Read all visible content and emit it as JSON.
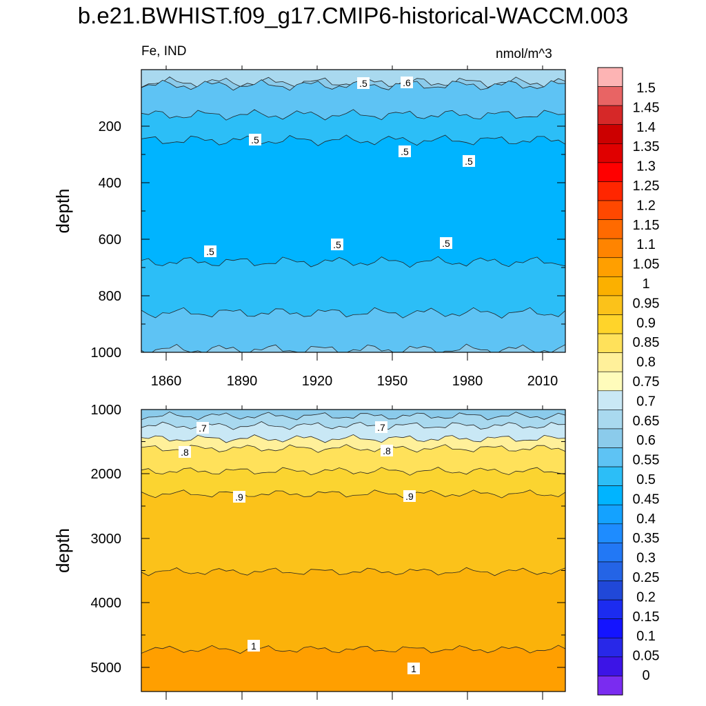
{
  "title": "b.e21.BWHIST.f09_g17.CMIP6-historical-WACCM.003",
  "left_label": "Fe, IND",
  "units": "nmol/m^3",
  "chart_data": [
    {
      "type": "heatmap",
      "panel": "upper",
      "ylabel": "depth",
      "xlim": [
        1850,
        2015
      ],
      "ylim": [
        1000,
        0
      ],
      "x_ticks": [
        "1860",
        "1890",
        "1920",
        "1950",
        "1980",
        "2010"
      ],
      "y_ticks": [
        "200",
        "400",
        "600",
        "800",
        "1000"
      ],
      "contour_labels": [
        ".5",
        ".6",
        ".5",
        ".5",
        ".5",
        ".5",
        ".5",
        ".5"
      ],
      "bands": [
        {
          "value": 0.675,
          "depth": [
            0,
            45
          ]
        },
        {
          "value": 0.625,
          "depth": [
            45,
            55
          ]
        },
        {
          "value": 0.575,
          "depth": [
            55,
            160
          ]
        },
        {
          "value": 0.525,
          "depth": [
            160,
            250
          ]
        },
        {
          "value": 0.475,
          "depth": [
            250,
            680
          ]
        },
        {
          "value": 0.525,
          "depth": [
            680,
            860
          ]
        },
        {
          "value": 0.575,
          "depth": [
            860,
            990
          ]
        },
        {
          "value": 0.625,
          "depth": [
            990,
            1000
          ]
        }
      ]
    },
    {
      "type": "heatmap",
      "panel": "lower",
      "ylabel": "depth",
      "xlim": [
        1850,
        2015
      ],
      "ylim": [
        5350,
        1000
      ],
      "y_ticks": [
        "1000",
        "2000",
        "3000",
        "4000",
        "5000"
      ],
      "contour_labels": [
        ".7",
        ".7",
        ".8",
        ".8",
        ".9",
        ".9",
        "1",
        "1"
      ],
      "bands": [
        {
          "value": 0.625,
          "depth": [
            1000,
            1100
          ]
        },
        {
          "value": 0.675,
          "depth": [
            1100,
            1250
          ]
        },
        {
          "value": 0.725,
          "depth": [
            1250,
            1450
          ]
        },
        {
          "value": 0.775,
          "depth": [
            1450,
            1600
          ]
        },
        {
          "value": 0.825,
          "depth": [
            1600,
            1950
          ]
        },
        {
          "value": 0.875,
          "depth": [
            1950,
            2300
          ]
        },
        {
          "value": 0.925,
          "depth": [
            2300,
            3500
          ]
        },
        {
          "value": 0.975,
          "depth": [
            3500,
            4700
          ]
        },
        {
          "value": 1.025,
          "depth": [
            4700,
            5350
          ]
        }
      ]
    }
  ],
  "colorbar": {
    "labels": [
      "1.5",
      "1.45",
      "1.4",
      "1.35",
      "1.3",
      "1.25",
      "1.2",
      "1.15",
      "1.1",
      "1.05",
      "1",
      "0.95",
      "0.9",
      "0.85",
      "0.8",
      "0.75",
      "0.7",
      "0.65",
      "0.6",
      "0.55",
      "0.5",
      "0.45",
      "0.4",
      "0.35",
      "0.3",
      "0.25",
      "0.2",
      "0.15",
      "0.1",
      "0.05",
      "0"
    ],
    "colors": [
      "#fdb4b4",
      "#e86464",
      "#d62828",
      "#cc0000",
      "#e00000",
      "#ff0000",
      "#ff2600",
      "#ff4800",
      "#ff6a00",
      "#ff8400",
      "#ff9f00",
      "#fbb000",
      "#fbc21a",
      "#ffd42a",
      "#ffe15a",
      "#fff09a",
      "#fffcbb",
      "#c9e8f5",
      "#a9d9ef",
      "#8bcbeb",
      "#5ec3f4",
      "#2cbef7",
      "#00b4ff",
      "#14a2ff",
      "#1e8cff",
      "#2278f5",
      "#2464e6",
      "#2048d8",
      "#1c2cf0",
      "#1414ff",
      "#2828e8",
      "#3c14e6",
      "#7a2cf0"
    ]
  }
}
